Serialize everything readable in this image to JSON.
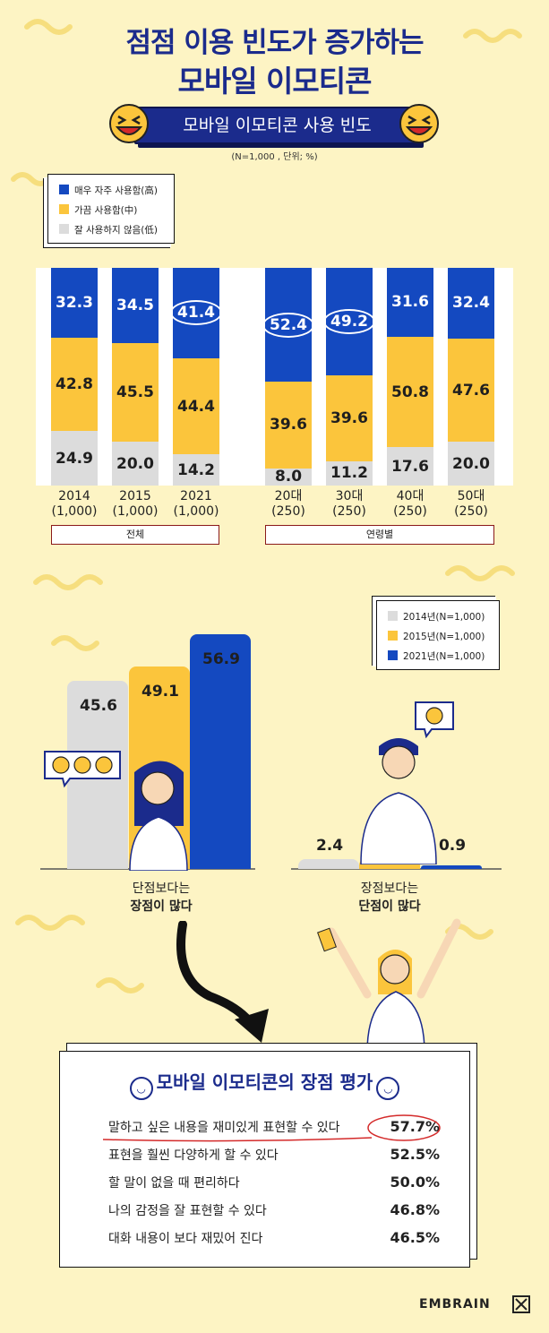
{
  "header": {
    "title_line1": "점점 이용 빈도가 증가하는",
    "title_line2": "모바일 이모티콘",
    "banner": "모바일 이모티콘 사용 빈도",
    "note": "(N=1,000 , 단위; %)"
  },
  "colors": {
    "navy": "#1b2b8c",
    "blue": "#1449c0",
    "yellow": "#fbc53c",
    "gray": "#dcdcdc"
  },
  "chart_data": [
    {
      "type": "bar",
      "stacked": true,
      "categories": [
        "2014\n(1,000)",
        "2015\n(1,000)",
        "2021\n(1,000)",
        "20대\n(250)",
        "30대\n(250)",
        "40대\n(250)",
        "50대\n(250)"
      ],
      "category_lines": [
        [
          "2014",
          "(1,000)"
        ],
        [
          "2015",
          "(1,000)"
        ],
        [
          "2021",
          "(1,000)"
        ],
        [
          "20대",
          "(250)"
        ],
        [
          "30대",
          "(250)"
        ],
        [
          "40대",
          "(250)"
        ],
        [
          "50대",
          "(250)"
        ]
      ],
      "groups": [
        {
          "label": "전체",
          "count": 3
        },
        {
          "label": "연령별",
          "count": 4
        }
      ],
      "series": [
        {
          "name": "매우 자주 사용함(高)",
          "values": [
            32.3,
            34.5,
            41.4,
            52.4,
            49.2,
            31.6,
            32.4
          ],
          "color": "#1449c0"
        },
        {
          "name": "가끔 사용함(中)",
          "values": [
            42.8,
            45.5,
            44.4,
            39.6,
            39.6,
            50.8,
            47.6
          ],
          "color": "#fbc53c"
        },
        {
          "name": "잘 사용하지 않음(低)",
          "values": [
            24.9,
            20.0,
            14.2,
            8.0,
            11.2,
            17.6,
            20.0
          ],
          "color": "#dcdcdc"
        }
      ],
      "ylim": [
        0,
        100
      ]
    },
    {
      "type": "bar",
      "categories": [
        "단점보다는 장점이 많다",
        "장점보다는 단점이 많다"
      ],
      "category_lines": [
        [
          "단점보다는",
          "장점이 많다"
        ],
        [
          "장점보다는",
          "단점이 많다"
        ]
      ],
      "series": [
        {
          "name": "2014년(N=1,000)",
          "values": [
            45.6,
            2.4
          ],
          "color": "#dcdcdc"
        },
        {
          "name": "2015년(N=1,000)",
          "values": [
            49.1,
            2.5
          ],
          "color": "#fbc53c"
        },
        {
          "name": "2021년(N=1,000)",
          "values": [
            56.9,
            0.9
          ],
          "color": "#1449c0"
        }
      ],
      "ylim": [
        0,
        60
      ]
    },
    {
      "type": "table",
      "title": "모바일 이모티콘의 장점 평가",
      "rows": [
        {
          "label": "말하고 싶은 내용을 재미있게 표현할 수 있다",
          "value": "57.7%",
          "highlight": true
        },
        {
          "label": "표현을 훨씬 다양하게 할 수 있다",
          "value": "52.5%"
        },
        {
          "label": "할 말이 없을 때 편리하다",
          "value": "50.0%"
        },
        {
          "label": "나의 감정을 잘 표현할 수 있다",
          "value": "46.8%"
        },
        {
          "label": "대화 내용이 보다 재밌어 진다",
          "value": "46.5%"
        }
      ]
    }
  ],
  "footer": {
    "brand": "EMBRAIN"
  }
}
